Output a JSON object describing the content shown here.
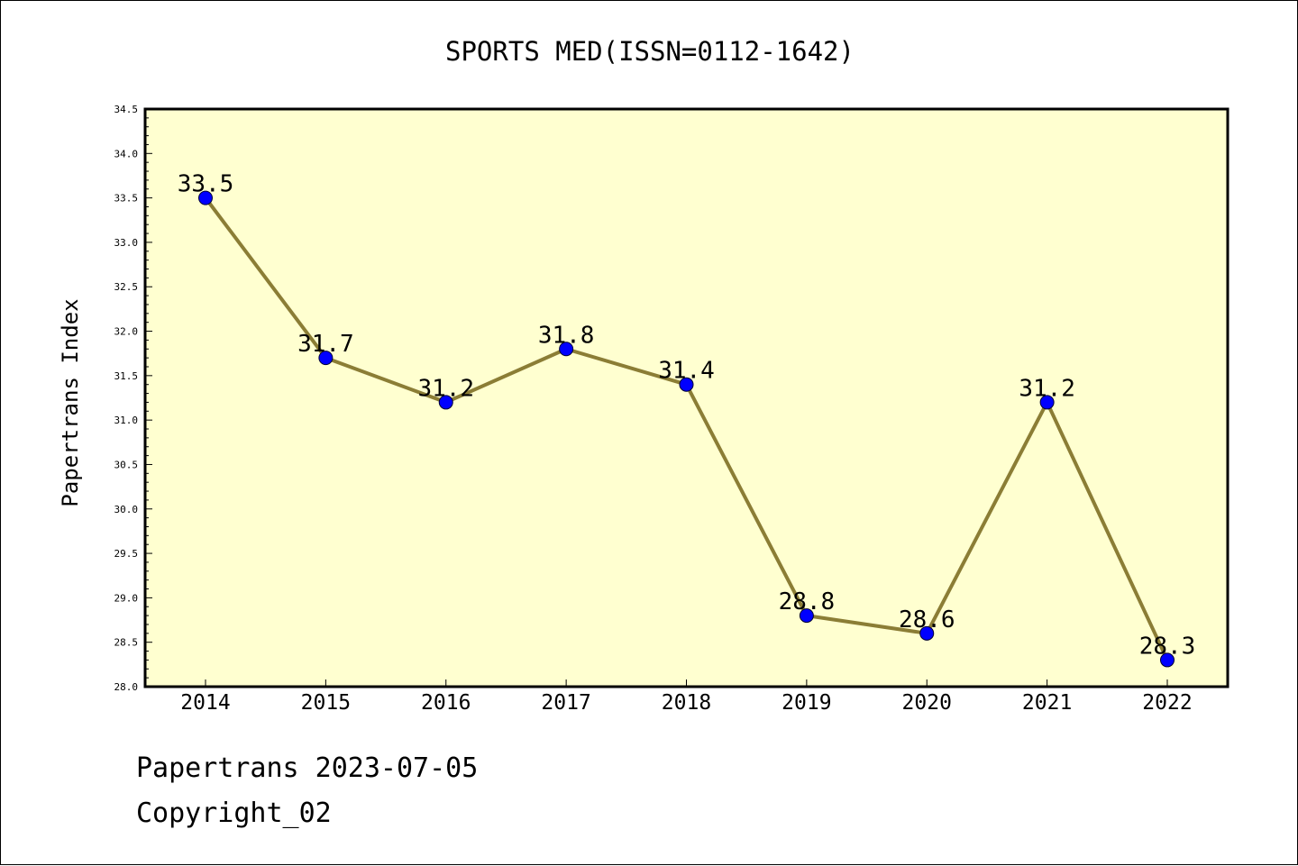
{
  "chart_data": {
    "type": "line",
    "title": "SPORTS MED(ISSN=0112-1642)",
    "xlabel": "",
    "ylabel": "Papertrans Index",
    "categories": [
      "2014",
      "2015",
      "2016",
      "2017",
      "2018",
      "2019",
      "2020",
      "2021",
      "2022"
    ],
    "series": [
      {
        "values": [
          33.5,
          31.7,
          31.2,
          31.8,
          31.4,
          28.8,
          28.6,
          31.2,
          28.3
        ],
        "labels": [
          "33.5",
          "31.7",
          "31.2",
          "31.8",
          "31.4",
          "28.8",
          "28.6",
          "31.2",
          "28.3"
        ]
      }
    ],
    "ylim": [
      28.0,
      34.5
    ],
    "yticks": [
      "28.0",
      "28.5",
      "29.0",
      "29.5",
      "30.0",
      "30.5",
      "31.0",
      "31.5",
      "32.0",
      "32.5",
      "33.0",
      "33.5",
      "34.0",
      "34.5"
    ],
    "grid": false,
    "colors": {
      "plot_background": "#ffffd0",
      "line": "#8b7d35",
      "marker": "#0000ff"
    }
  },
  "footer": {
    "line1": "Papertrans 2023-07-05",
    "line2": "Copyright_02"
  }
}
